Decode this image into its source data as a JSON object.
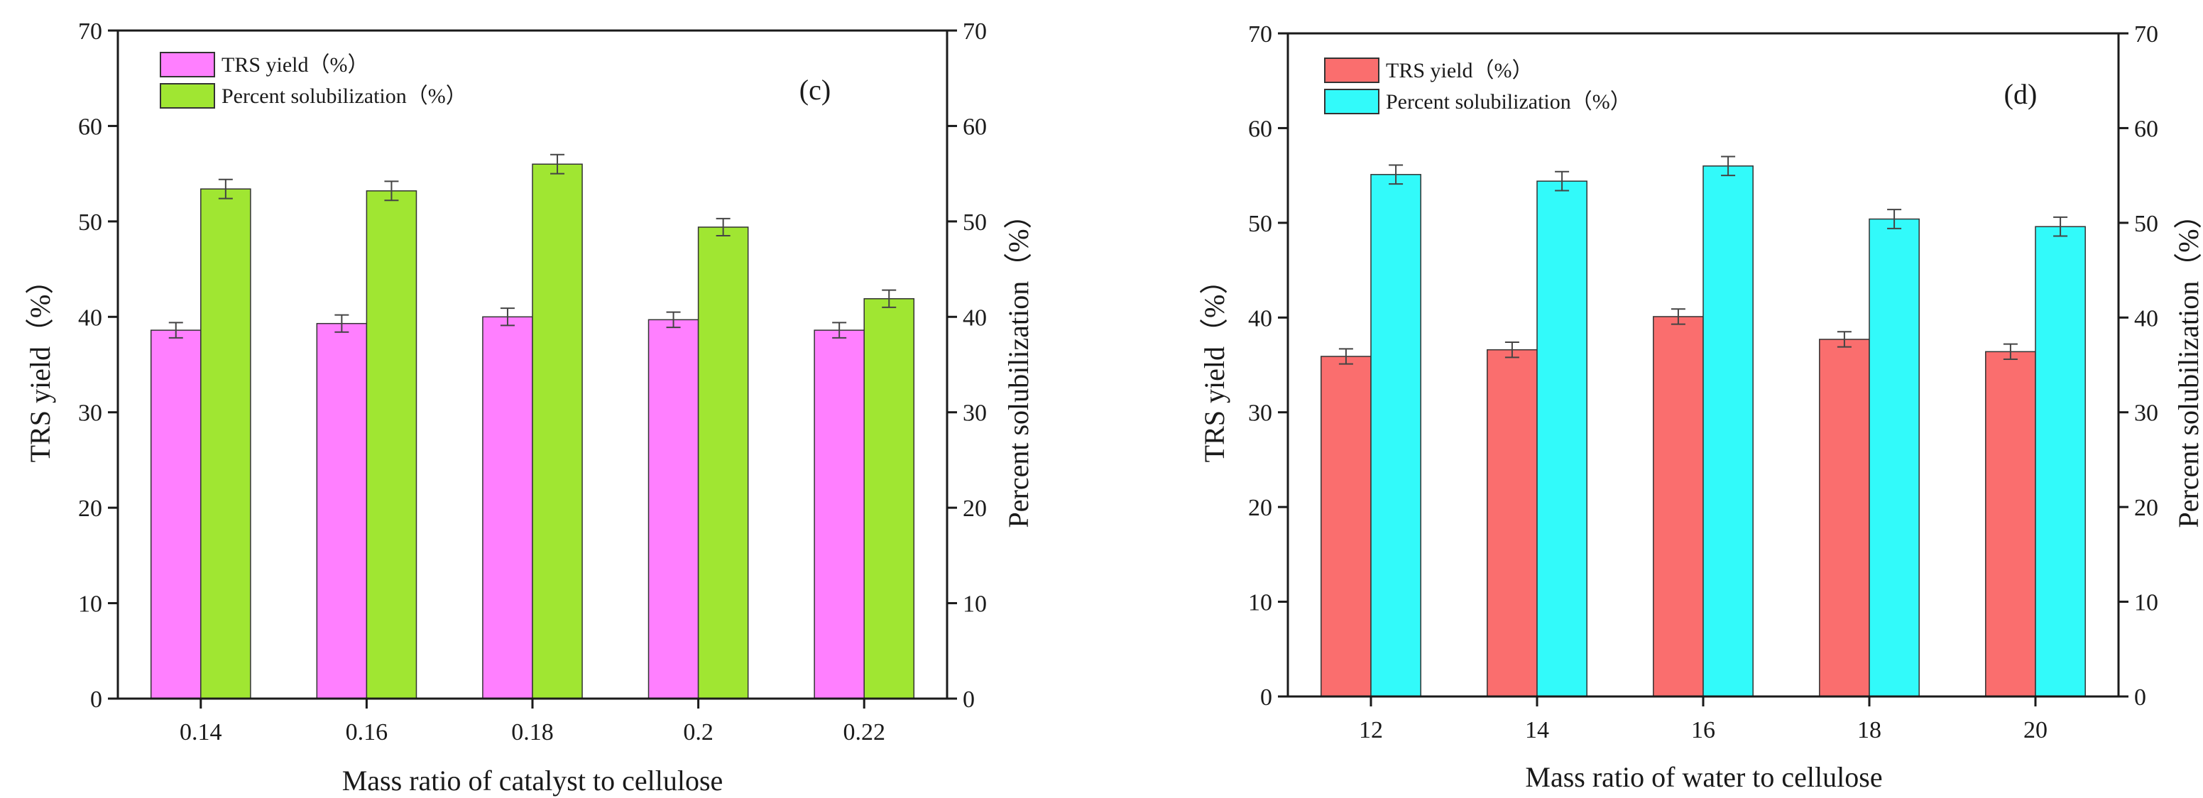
{
  "figure": {
    "colors": {
      "axis": "#1a1a1a",
      "bar_stroke": "#333333",
      "error_bar": "#444444"
    }
  },
  "chart_data": [
    {
      "type": "bar",
      "panel_label": "(c)",
      "xlabel": "Mass ratio of catalyst to cellulose",
      "ylabel": "TRS yield（%）",
      "y2label": "Percent solubilization（%）",
      "categories": [
        "0.14",
        "0.16",
        "0.18",
        "0.2",
        "0.22"
      ],
      "ylim": [
        0,
        70
      ],
      "y2lim": [
        0,
        70
      ],
      "yticks": [
        "0",
        "10",
        "20",
        "30",
        "40",
        "50",
        "60",
        "70"
      ],
      "y2ticks": [
        "0",
        "10",
        "20",
        "30",
        "40",
        "50",
        "60",
        "70"
      ],
      "legend_position": "top-left",
      "series": [
        {
          "name": "TRS yield（%）",
          "color": "#ff7fff",
          "axis": "left",
          "values": [
            38.6,
            39.3,
            40.0,
            39.7,
            38.6
          ],
          "errors": [
            0.8,
            0.9,
            0.9,
            0.8,
            0.8
          ]
        },
        {
          "name": "Percent solubilization（%）",
          "color": "#a0e632",
          "axis": "right",
          "values": [
            53.4,
            53.2,
            56.0,
            49.4,
            41.9
          ],
          "errors": [
            1.0,
            1.0,
            1.0,
            0.9,
            0.9
          ]
        }
      ]
    },
    {
      "type": "bar",
      "panel_label": "(d)",
      "xlabel": "Mass ratio of water to cellulose",
      "ylabel": "TRS yield（%）",
      "y2label": "Percent solubilization（%）",
      "categories": [
        "12",
        "14",
        "16",
        "18",
        "20"
      ],
      "ylim": [
        0,
        70
      ],
      "y2lim": [
        0,
        70
      ],
      "yticks": [
        "0",
        "10",
        "20",
        "30",
        "40",
        "50",
        "60",
        "70"
      ],
      "y2ticks": [
        "0",
        "10",
        "20",
        "30",
        "40",
        "50",
        "60",
        "70"
      ],
      "legend_position": "top-left",
      "series": [
        {
          "name": "TRS yield（%）",
          "color": "#fa6e6e",
          "axis": "left",
          "values": [
            35.9,
            36.6,
            40.1,
            37.7,
            36.4
          ],
          "errors": [
            0.8,
            0.8,
            0.8,
            0.8,
            0.8
          ]
        },
        {
          "name": "Percent solubilization（%）",
          "color": "#32fafa",
          "axis": "right",
          "values": [
            55.1,
            54.4,
            56.0,
            50.4,
            49.6
          ],
          "errors": [
            1.0,
            1.0,
            1.0,
            1.0,
            1.0
          ]
        }
      ]
    }
  ]
}
